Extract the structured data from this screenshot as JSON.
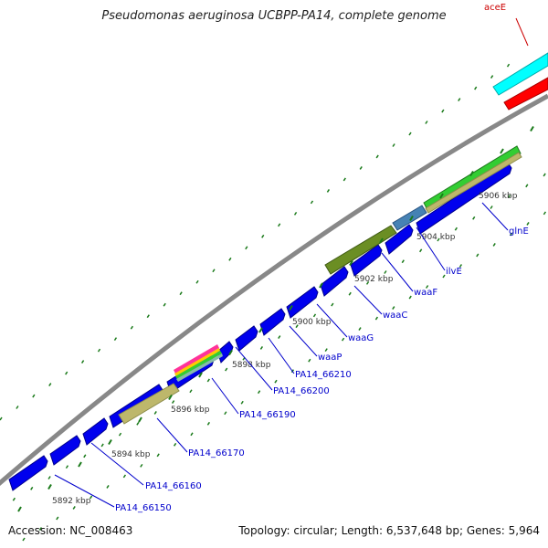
{
  "title": "Pseudomonas aeruginosa UCBPP-PA14, complete genome",
  "footer": {
    "accession": "Accession: NC_008463",
    "summary": "Topology: circular; Length: 6,537,648 bp; Genes: 5,964"
  },
  "colors": {
    "background": "#ffffff",
    "backbone": "#888888",
    "gene_label": "#0000cc",
    "gene_line": "#0000cc",
    "top_label": "#cc0000",
    "tick": "#1a7a1a",
    "tick_label": "#333333",
    "gene_blue": "#0000ee",
    "gene_olive": "#6b8e23",
    "gene_khaki": "#bdb76b",
    "gene_cyan": "#00ffff",
    "gene_red": "#ff0000",
    "gene_steel": "#4682b4",
    "gene_green": "#32cd32"
  },
  "ticks": [
    "5892 kbp",
    "5894 kbp",
    "5896 kbp",
    "5898 kbp",
    "5900 kbp",
    "5902 kbp",
    "5904 kbp",
    "5906 kbp"
  ],
  "gene_labels": [
    "PA14_66150",
    "PA14_66160",
    "PA14_66170",
    "PA14_66190",
    "PA14_66200",
    "PA14_66210",
    "waaP",
    "waaG",
    "waaC",
    "waaF",
    "ilvE",
    "glnE"
  ],
  "top_label": "aceE"
}
